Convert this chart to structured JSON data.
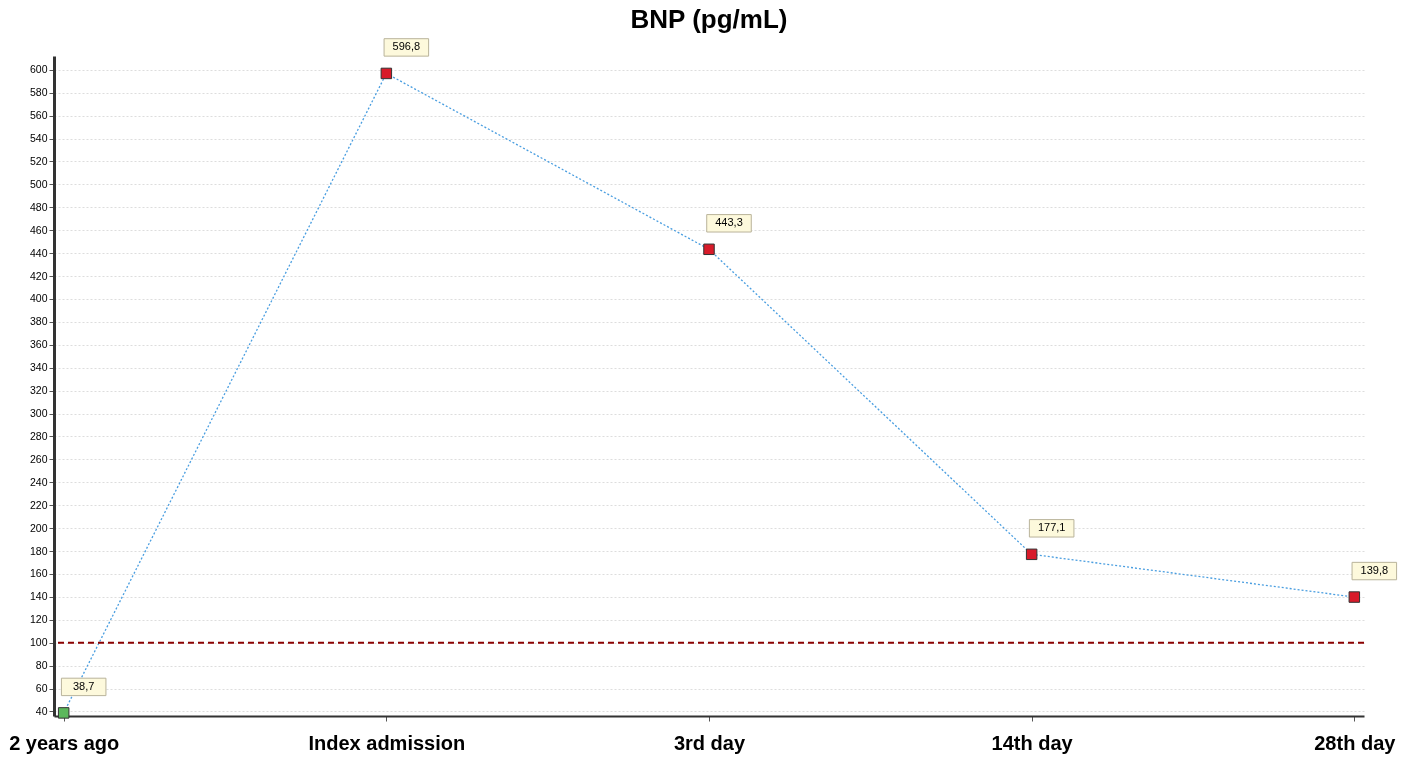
{
  "chart_data": {
    "type": "line",
    "title": "BNP (pg/mL)",
    "categories": [
      "2 years ago",
      "Index admission",
      "3rd day",
      "14th day",
      "28th day"
    ],
    "series": [
      {
        "color": "#4a9ee0",
        "colors": [
          "#5cb85c",
          "#d81b2a",
          "#d81b2a",
          "#d81b2a",
          "#d81b2a"
        ],
        "values": [
          38.7,
          596.8,
          443.3,
          177.1,
          139.8
        ],
        "value_labels": [
          "38,7",
          "596,8",
          "443,3",
          "177,1",
          "139,8"
        ]
      }
    ],
    "ylim": [
      36,
      612
    ],
    "yticks": [
      40,
      60,
      80,
      100,
      120,
      140,
      160,
      180,
      200,
      220,
      240,
      260,
      280,
      300,
      320,
      340,
      360,
      380,
      400,
      420,
      440,
      460,
      480,
      500,
      520,
      540,
      560,
      580,
      600
    ],
    "ref_lines": [
      {
        "axis": "y",
        "value": 100,
        "color": "#8b0000",
        "line_style": "dashed"
      }
    ],
    "grid": "y",
    "marker": "square",
    "line_style": "dotted",
    "legend": false
  }
}
